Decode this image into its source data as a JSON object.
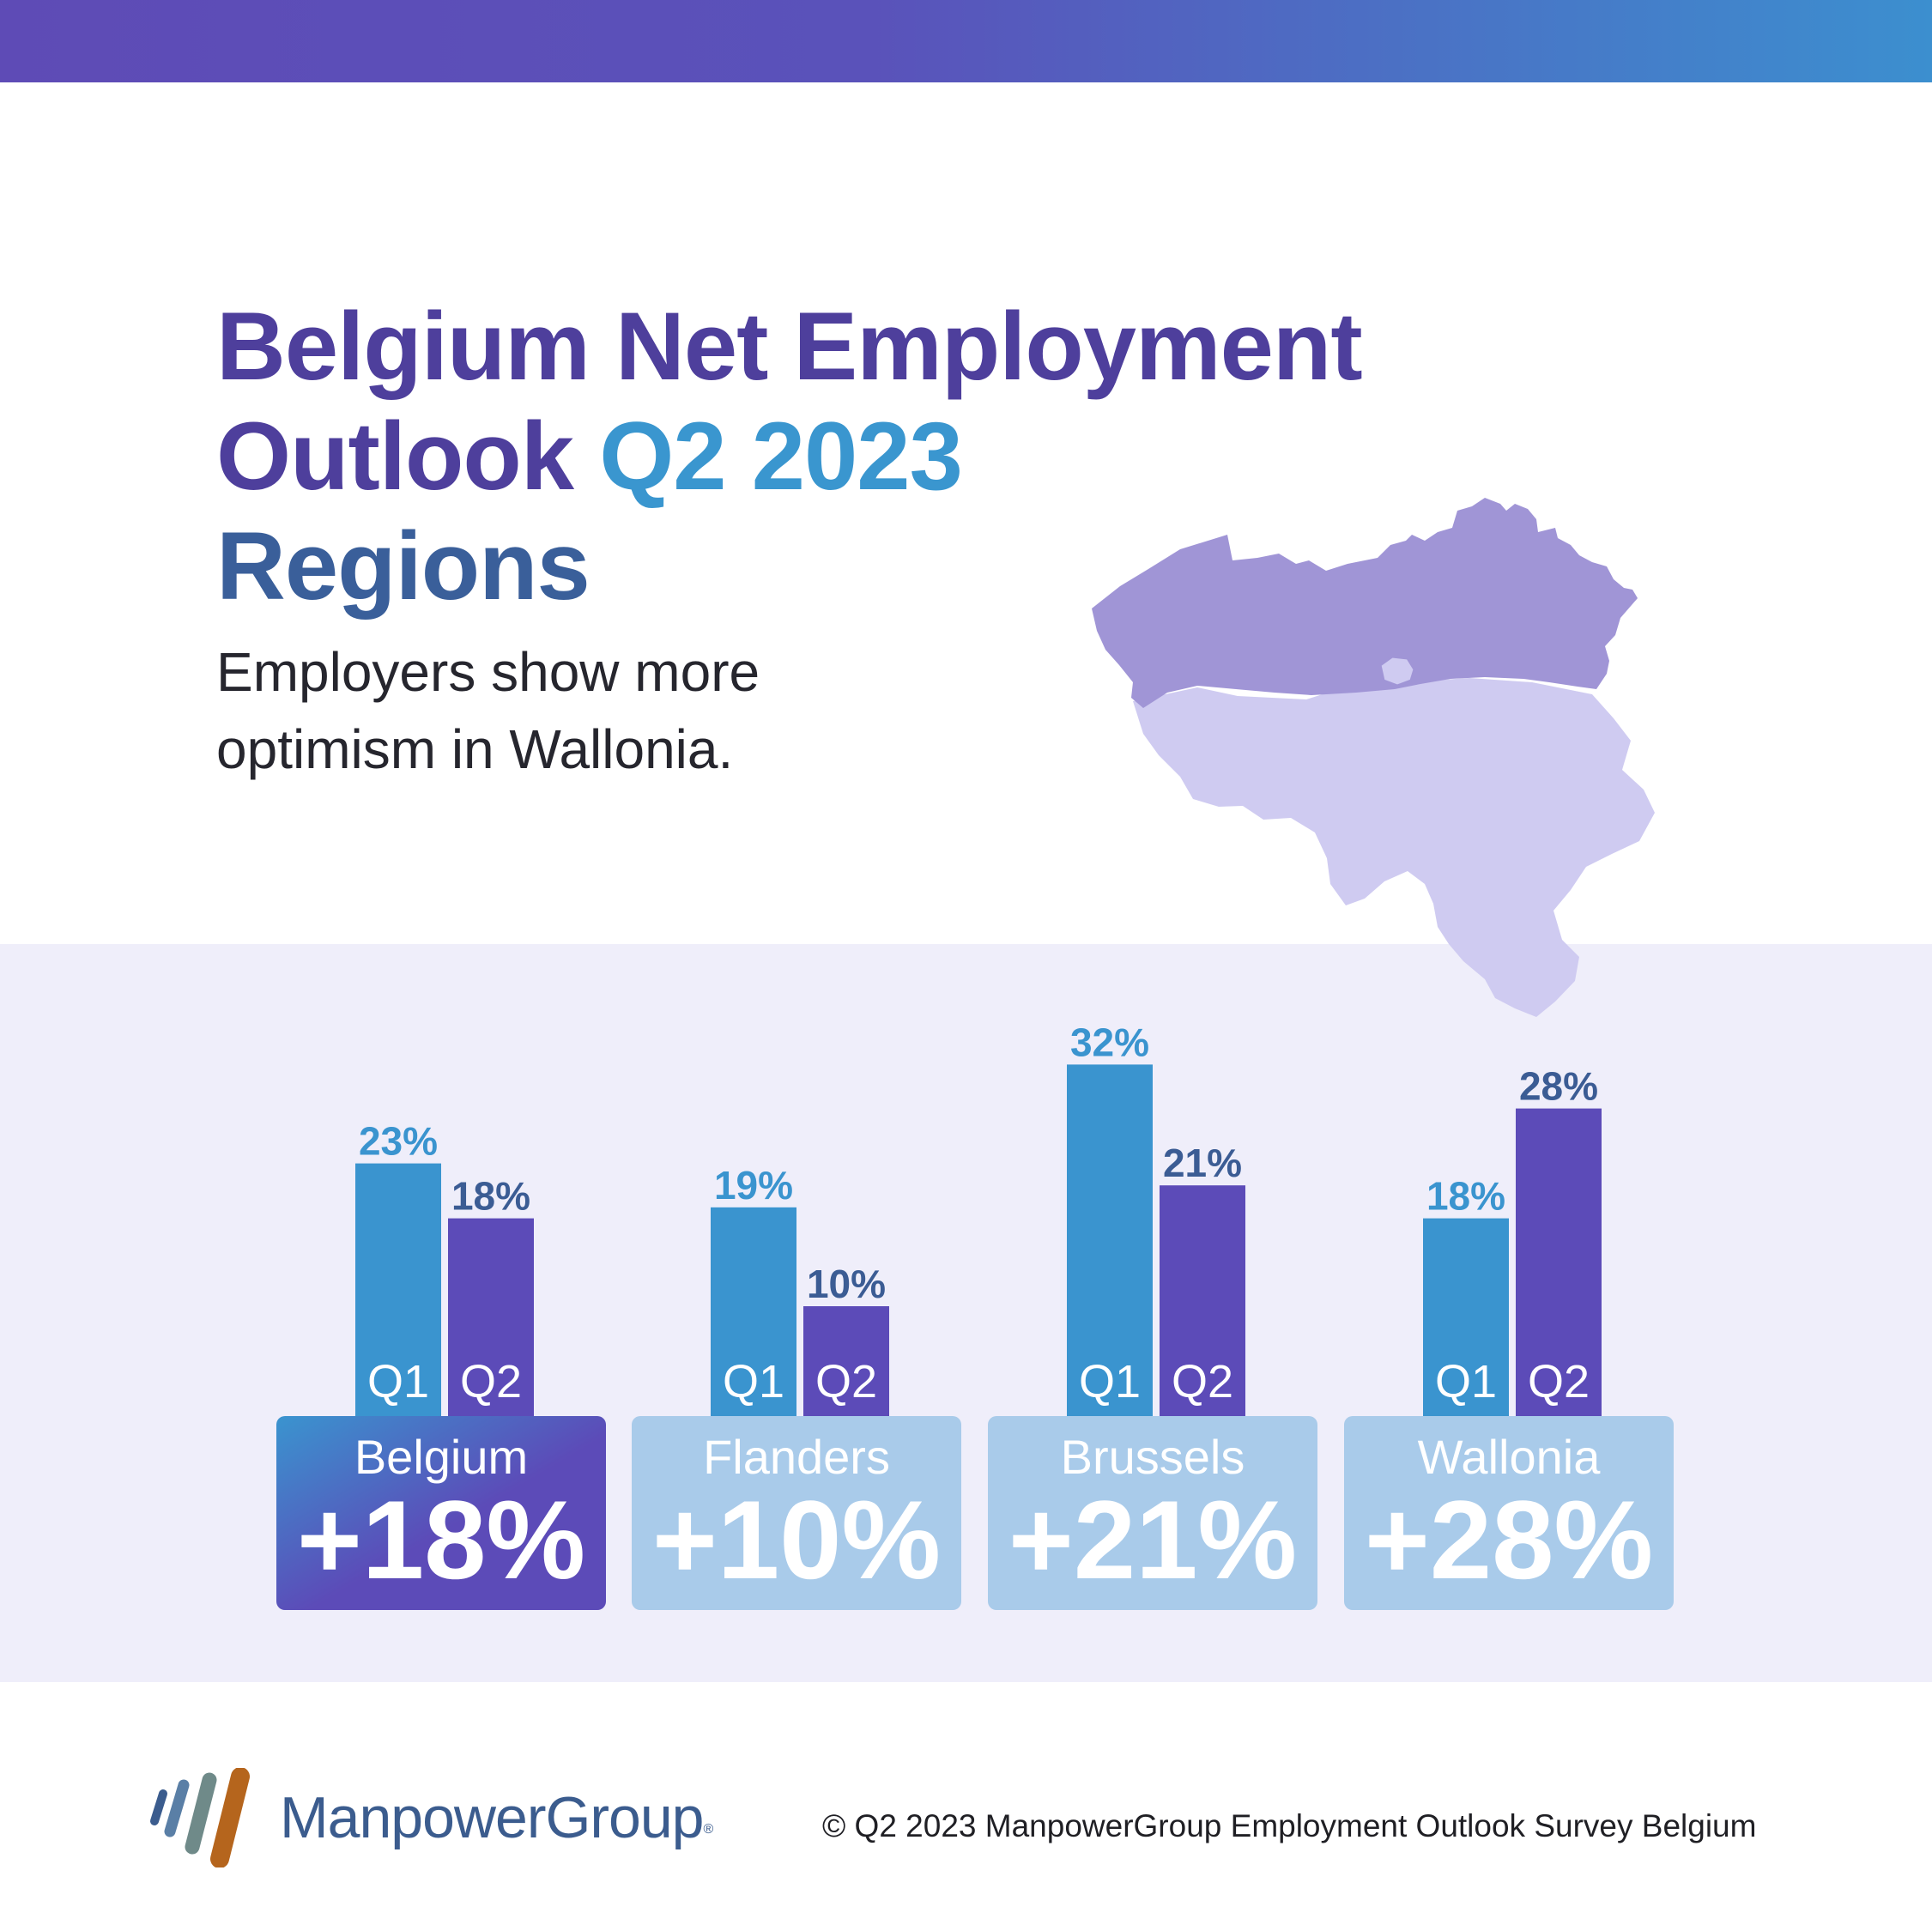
{
  "header": {
    "title_line1": "Belgium Net Employment",
    "title_line2_a": "Outlook ",
    "title_line2_b": "Q2 2023",
    "title_line3": "Regions",
    "subtitle_line1": "Employers show more",
    "subtitle_line2": "optimism in Wallonia."
  },
  "colors": {
    "q1": "#3a94cf",
    "q2": "#5c4bb8",
    "q1_label": "#3a94cf",
    "q2_label": "#3b5c94",
    "card_active_from": "#3a94cf",
    "card_active_to": "#5c4bb8",
    "card_inactive": "#a9cbea",
    "map_flanders": "#9f94d6",
    "map_wallonia": "#cfcbf1"
  },
  "chart_data": {
    "type": "bar",
    "categories": [
      "Belgium",
      "Flanders",
      "Brussels",
      "Wallonia"
    ],
    "series": [
      {
        "name": "Q1",
        "values": [
          23,
          19,
          32,
          18
        ],
        "labels": [
          "23%",
          "19%",
          "32%",
          "18%"
        ]
      },
      {
        "name": "Q2",
        "values": [
          18,
          10,
          21,
          28
        ],
        "labels": [
          "18%",
          "10%",
          "21%",
          "28%"
        ]
      }
    ],
    "headline_values": [
      "+18%",
      "+10%",
      "+21%",
      "+28%"
    ],
    "highlighted": "Belgium",
    "title": "",
    "xlabel": "",
    "ylabel": "",
    "ylim": [
      0,
      32
    ]
  },
  "footer": {
    "brand_name": "ManpowerGroup",
    "brand_mark": "®",
    "copyright": "© Q2 2023 ManpowerGroup Employment Outlook Survey Belgium"
  }
}
